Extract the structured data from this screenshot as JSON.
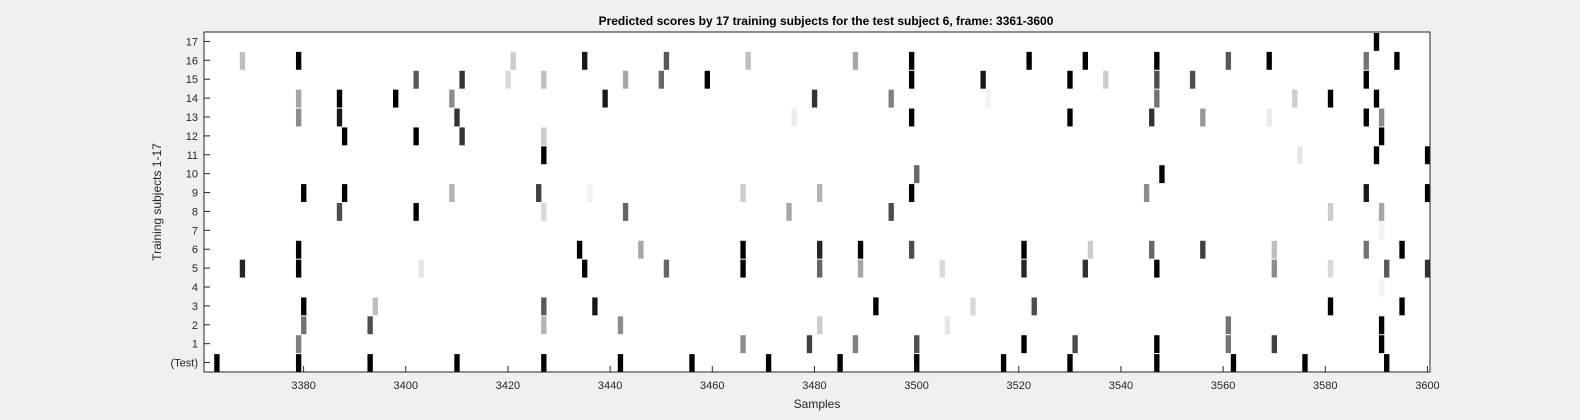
{
  "chart_data": {
    "type": "heatmap",
    "title": "Predicted scores by 17 training subjects for the test subject 6, frame: 3361-3600",
    "xlabel": "Samples",
    "ylabel": "Training subjects 1-17",
    "xlim": [
      3361,
      3600
    ],
    "x_ticks": [
      3380,
      3400,
      3420,
      3440,
      3460,
      3480,
      3500,
      3520,
      3540,
      3560,
      3580,
      3600
    ],
    "rows": [
      "(Test)",
      "1",
      "2",
      "3",
      "4",
      "5",
      "6",
      "7",
      "8",
      "9",
      "10",
      "11",
      "12",
      "13",
      "14",
      "15",
      "16",
      "17"
    ],
    "colormap": "gray-reversed (white = 0, black = 1)",
    "grid": false,
    "events": [
      {
        "row": 0,
        "marks": [
          [
            3363,
            1
          ],
          [
            3379,
            1
          ],
          [
            3393,
            1
          ],
          [
            3410,
            1
          ],
          [
            3427,
            1
          ],
          [
            3442,
            1
          ],
          [
            3456,
            1
          ],
          [
            3471,
            1
          ],
          [
            3485,
            1
          ],
          [
            3500,
            1
          ],
          [
            3517,
            1
          ],
          [
            3530,
            1
          ],
          [
            3547,
            1
          ],
          [
            3562,
            1
          ],
          [
            3576,
            1
          ],
          [
            3592,
            1
          ]
        ]
      },
      {
        "row": 1,
        "marks": [
          [
            3379,
            0.5
          ],
          [
            3466,
            0.45
          ],
          [
            3479,
            0.75
          ],
          [
            3488,
            0.5
          ],
          [
            3500,
            0.7
          ],
          [
            3521,
            1
          ],
          [
            3531,
            0.7
          ],
          [
            3547,
            1
          ],
          [
            3561,
            0.55
          ],
          [
            3570,
            0.75
          ],
          [
            3591,
            1
          ]
        ]
      },
      {
        "row": 2,
        "marks": [
          [
            3380,
            0.55
          ],
          [
            3393,
            0.7
          ],
          [
            3427,
            0.3
          ],
          [
            3442,
            0.45
          ],
          [
            3481,
            0.2
          ],
          [
            3506,
            0.1
          ],
          [
            3561,
            0.55
          ],
          [
            3591,
            1
          ]
        ]
      },
      {
        "row": 3,
        "marks": [
          [
            3380,
            1
          ],
          [
            3394,
            0.25
          ],
          [
            3427,
            0.65
          ],
          [
            3437,
            0.9
          ],
          [
            3492,
            1
          ],
          [
            3511,
            0.15
          ],
          [
            3523,
            0.7
          ],
          [
            3581,
            1
          ],
          [
            3595,
            1
          ]
        ]
      },
      {
        "row": 4,
        "marks": [
          [
            3591,
            0.05
          ]
        ]
      },
      {
        "row": 5,
        "marks": [
          [
            3368,
            0.85
          ],
          [
            3379,
            1
          ],
          [
            3403,
            0.1
          ],
          [
            3435,
            1
          ],
          [
            3451,
            0.6
          ],
          [
            3466,
            1
          ],
          [
            3481,
            0.6
          ],
          [
            3489,
            0.35
          ],
          [
            3505,
            0.15
          ],
          [
            3521,
            0.85
          ],
          [
            3533,
            0.8
          ],
          [
            3547,
            1
          ],
          [
            3570,
            0.45
          ],
          [
            3581,
            0.15
          ],
          [
            3592,
            0.65
          ],
          [
            3600,
            0.8
          ]
        ]
      },
      {
        "row": 6,
        "marks": [
          [
            3379,
            1
          ],
          [
            3434,
            1
          ],
          [
            3446,
            0.35
          ],
          [
            3466,
            1
          ],
          [
            3481,
            0.85
          ],
          [
            3489,
            1
          ],
          [
            3499,
            0.7
          ],
          [
            3521,
            1
          ],
          [
            3534,
            0.2
          ],
          [
            3546,
            0.6
          ],
          [
            3556,
            0.75
          ],
          [
            3570,
            0.25
          ],
          [
            3588,
            0.55
          ],
          [
            3595,
            1
          ]
        ]
      },
      {
        "row": 7,
        "marks": [
          [
            3591,
            0.05
          ]
        ]
      },
      {
        "row": 8,
        "marks": [
          [
            3387,
            0.7
          ],
          [
            3402,
            1
          ],
          [
            3427,
            0.15
          ],
          [
            3443,
            0.6
          ],
          [
            3475,
            0.35
          ],
          [
            3495,
            0.7
          ],
          [
            3581,
            0.2
          ],
          [
            3591,
            0.35
          ]
        ]
      },
      {
        "row": 9,
        "marks": [
          [
            3380,
            1
          ],
          [
            3388,
            1
          ],
          [
            3409,
            0.3
          ],
          [
            3426,
            0.75
          ],
          [
            3436,
            0.05
          ],
          [
            3466,
            0.2
          ],
          [
            3481,
            0.3
          ],
          [
            3499,
            1
          ],
          [
            3545,
            0.45
          ],
          [
            3588,
            0.9
          ],
          [
            3600,
            1
          ]
        ]
      },
      {
        "row": 10,
        "marks": [
          [
            3500,
            0.6
          ],
          [
            3548,
            1
          ]
        ]
      },
      {
        "row": 11,
        "marks": [
          [
            3427,
            1
          ],
          [
            3575,
            0.1
          ],
          [
            3590,
            1
          ],
          [
            3600,
            1
          ]
        ]
      },
      {
        "row": 12,
        "marks": [
          [
            3388,
            1
          ],
          [
            3402,
            1
          ],
          [
            3411,
            0.8
          ],
          [
            3427,
            0.2
          ],
          [
            3591,
            1
          ]
        ]
      },
      {
        "row": 13,
        "marks": [
          [
            3379,
            0.45
          ],
          [
            3387,
            0.9
          ],
          [
            3410,
            0.8
          ],
          [
            3476,
            0.08
          ],
          [
            3499,
            1
          ],
          [
            3530,
            1
          ],
          [
            3546,
            0.8
          ],
          [
            3556,
            0.4
          ],
          [
            3569,
            0.08
          ],
          [
            3588,
            1
          ],
          [
            3591,
            0.45
          ]
        ]
      },
      {
        "row": 14,
        "marks": [
          [
            3379,
            0.35
          ],
          [
            3387,
            1
          ],
          [
            3398,
            1
          ],
          [
            3409,
            0.45
          ],
          [
            3439,
            0.9
          ],
          [
            3480,
            0.8
          ],
          [
            3495,
            0.5
          ],
          [
            3514,
            0.05
          ],
          [
            3547,
            0.55
          ],
          [
            3574,
            0.2
          ],
          [
            3581,
            1
          ],
          [
            3590,
            1
          ]
        ]
      },
      {
        "row": 15,
        "marks": [
          [
            3402,
            0.65
          ],
          [
            3411,
            0.8
          ],
          [
            3420,
            0.15
          ],
          [
            3427,
            0.25
          ],
          [
            3443,
            0.35
          ],
          [
            3450,
            0.6
          ],
          [
            3459,
            1
          ],
          [
            3499,
            1
          ],
          [
            3513,
            0.9
          ],
          [
            3530,
            1
          ],
          [
            3537,
            0.2
          ],
          [
            3547,
            0.7
          ],
          [
            3554,
            0.7
          ],
          [
            3588,
            1
          ]
        ]
      },
      {
        "row": 16,
        "marks": [
          [
            3368,
            0.25
          ],
          [
            3379,
            1
          ],
          [
            3421,
            0.2
          ],
          [
            3435,
            0.9
          ],
          [
            3451,
            0.65
          ],
          [
            3467,
            0.25
          ],
          [
            3488,
            0.35
          ],
          [
            3499,
            1
          ],
          [
            3522,
            1
          ],
          [
            3533,
            1
          ],
          [
            3547,
            1
          ],
          [
            3561,
            0.65
          ],
          [
            3569,
            1
          ],
          [
            3588,
            0.55
          ],
          [
            3594,
            1
          ]
        ]
      },
      {
        "row": 17,
        "marks": [
          [
            3590,
            1
          ]
        ]
      }
    ]
  }
}
